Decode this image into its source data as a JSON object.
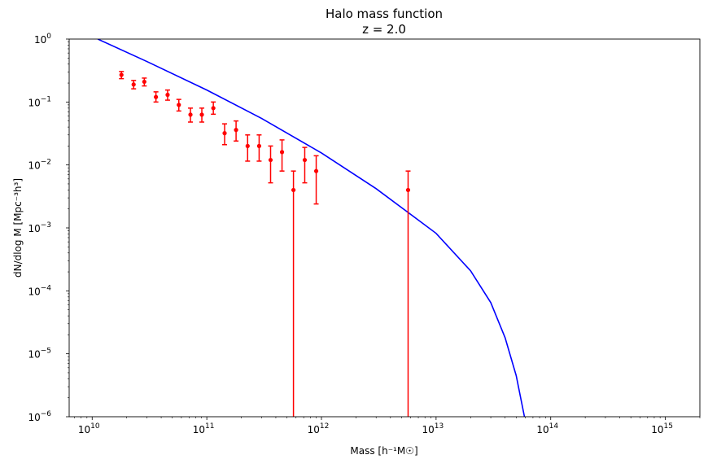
{
  "chart_data": {
    "type": "scatter",
    "title": "Halo mass function",
    "subtitle": "z = 2.0",
    "xlabel": "Mass [h⁻¹M☉]",
    "ylabel": "dN/dlog M [Mpc⁻³h³]",
    "x_scale": "log",
    "y_scale": "log",
    "xlim": [
      6300000000.0,
      2000000000000000.0
    ],
    "ylim": [
      1e-06,
      1
    ],
    "grid": false,
    "legend": "none",
    "x_ticks": [
      {
        "value": 10000000000.0,
        "base": "10",
        "exp": "10"
      },
      {
        "value": 100000000000.0,
        "base": "10",
        "exp": "11"
      },
      {
        "value": 1000000000000.0,
        "base": "10",
        "exp": "12"
      },
      {
        "value": 10000000000000.0,
        "base": "10",
        "exp": "13"
      },
      {
        "value": 100000000000000.0,
        "base": "10",
        "exp": "14"
      },
      {
        "value": 1000000000000000.0,
        "base": "10",
        "exp": "15"
      }
    ],
    "y_ticks": [
      {
        "value": 1e-06,
        "base": "10",
        "exp": "−6"
      },
      {
        "value": 1e-05,
        "base": "10",
        "exp": "−5"
      },
      {
        "value": 0.0001,
        "base": "10",
        "exp": "−4"
      },
      {
        "value": 0.001,
        "base": "10",
        "exp": "−3"
      },
      {
        "value": 0.01,
        "base": "10",
        "exp": "−2"
      },
      {
        "value": 0.1,
        "base": "10",
        "exp": "−1"
      },
      {
        "value": 1,
        "base": "10",
        "exp": "0"
      }
    ],
    "series": [
      {
        "type": "line",
        "color": "#0000ff",
        "x": [
          11200000000.0,
          30000000000.0,
          100000000000.0,
          300000000000.0,
          1000000000000.0,
          3000000000000.0,
          10000000000000.0,
          20000000000000.0,
          30000000000000.0,
          40000000000000.0,
          50000000000000.0,
          59000000000000.0
        ],
        "y": [
          1.0,
          0.44,
          0.155,
          0.055,
          0.0155,
          0.0042,
          0.00082,
          0.000208,
          6.5e-05,
          1.8e-05,
          4.5e-06,
          1e-06
        ]
      },
      {
        "type": "errorbar",
        "color": "#ff0000",
        "points": [
          {
            "x": 18000000000.0,
            "y": 0.27,
            "lo": 0.235,
            "hi": 0.305
          },
          {
            "x": 23000000000.0,
            "y": 0.19,
            "lo": 0.162,
            "hi": 0.22
          },
          {
            "x": 28500000000.0,
            "y": 0.21,
            "lo": 0.18,
            "hi": 0.24
          },
          {
            "x": 36000000000.0,
            "y": 0.12,
            "lo": 0.1,
            "hi": 0.145
          },
          {
            "x": 45500000000.0,
            "y": 0.13,
            "lo": 0.107,
            "hi": 0.155
          },
          {
            "x": 57000000000.0,
            "y": 0.09,
            "lo": 0.072,
            "hi": 0.11
          },
          {
            "x": 72000000000.0,
            "y": 0.063,
            "lo": 0.048,
            "hi": 0.08
          },
          {
            "x": 90500000000.0,
            "y": 0.063,
            "lo": 0.048,
            "hi": 0.08
          },
          {
            "x": 114000000000.0,
            "y": 0.08,
            "lo": 0.064,
            "hi": 0.1
          },
          {
            "x": 143000000000.0,
            "y": 0.032,
            "lo": 0.021,
            "hi": 0.045
          },
          {
            "x": 180000000000.0,
            "y": 0.036,
            "lo": 0.024,
            "hi": 0.05
          },
          {
            "x": 227000000000.0,
            "y": 0.02,
            "lo": 0.0115,
            "hi": 0.03
          },
          {
            "x": 286000000000.0,
            "y": 0.02,
            "lo": 0.0115,
            "hi": 0.03
          },
          {
            "x": 360000000000.0,
            "y": 0.012,
            "lo": 0.0052,
            "hi": 0.02
          },
          {
            "x": 453000000000.0,
            "y": 0.016,
            "lo": 0.008,
            "hi": 0.025
          },
          {
            "x": 570000000000.0,
            "y": 0.004,
            "lo": 1e-06,
            "hi": 0.008
          },
          {
            "x": 715000000000.0,
            "y": 0.012,
            "lo": 0.0052,
            "hi": 0.019
          },
          {
            "x": 900000000000.0,
            "y": 0.008,
            "lo": 0.0024,
            "hi": 0.014
          },
          {
            "x": 5700000000000.0,
            "y": 0.004,
            "lo": 1e-06,
            "hi": 0.008
          }
        ]
      }
    ]
  }
}
